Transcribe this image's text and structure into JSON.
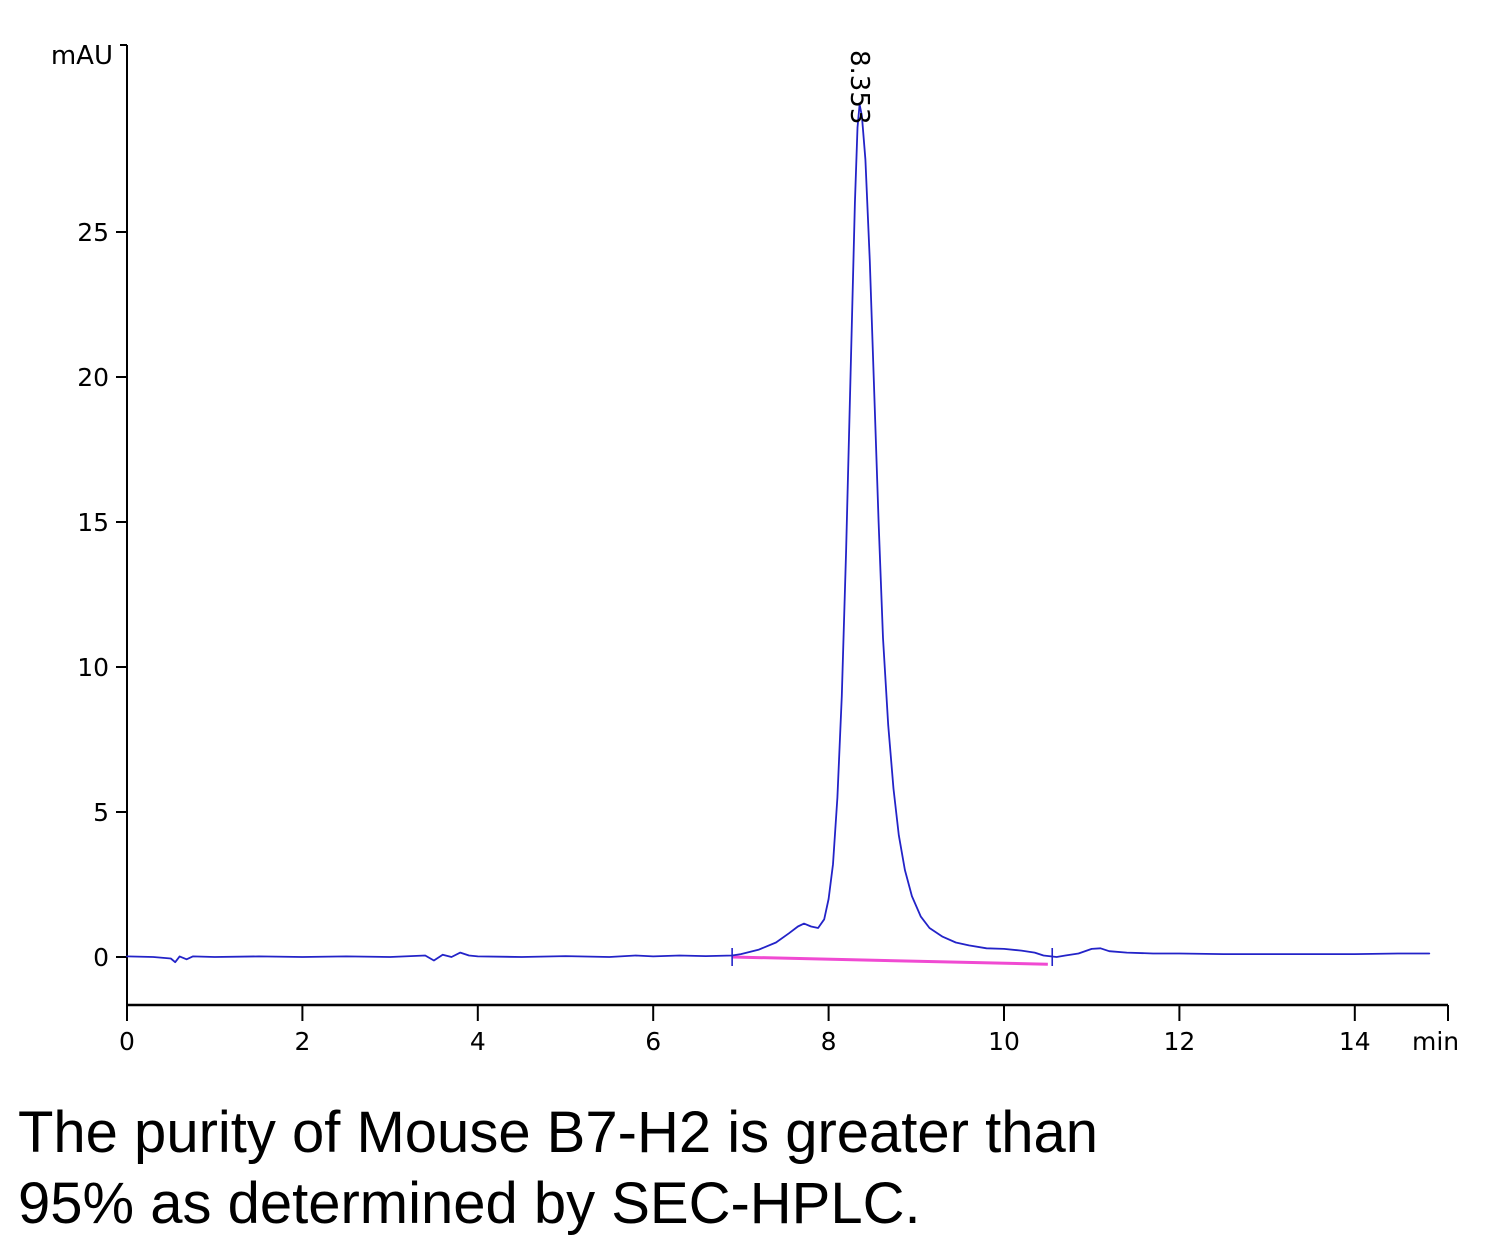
{
  "caption": {
    "line1": "The purity of Mouse B7-H2 is greater than",
    "line2": "95% as determined by SEC-HPLC."
  },
  "chart_data": {
    "type": "line",
    "title": "",
    "ylabel": "mAU",
    "xlabel": "min",
    "xlim": [
      0,
      15
    ],
    "ylim": [
      -1.7,
      31.5
    ],
    "x_ticks": [
      0,
      2,
      4,
      6,
      8,
      10,
      12,
      14
    ],
    "y_ticks": [
      0,
      5,
      10,
      15,
      20,
      25
    ],
    "grid": "off",
    "legend": "off",
    "peak": {
      "x": 8.353,
      "label": "8.353",
      "height_mAU": 29.4
    },
    "integration_marks": [
      6.9,
      10.55
    ],
    "colors": {
      "trace": "#2323c8",
      "baseline": "#f04ad2",
      "axis": "#000000",
      "peak_label": "#000000"
    },
    "series": [
      {
        "name": "UV trace",
        "color": "#2323c8",
        "points": [
          [
            0,
            0.02
          ],
          [
            0.3,
            0.0
          ],
          [
            0.5,
            -0.05
          ],
          [
            0.55,
            -0.18
          ],
          [
            0.6,
            0.02
          ],
          [
            0.68,
            -0.08
          ],
          [
            0.75,
            0.02
          ],
          [
            1.0,
            0.0
          ],
          [
            1.5,
            0.02
          ],
          [
            2.0,
            0.0
          ],
          [
            2.5,
            0.02
          ],
          [
            3.0,
            0.0
          ],
          [
            3.4,
            0.05
          ],
          [
            3.5,
            -0.12
          ],
          [
            3.6,
            0.08
          ],
          [
            3.7,
            0.0
          ],
          [
            3.8,
            0.15
          ],
          [
            3.9,
            0.05
          ],
          [
            4.0,
            0.02
          ],
          [
            4.5,
            0.0
          ],
          [
            5.0,
            0.03
          ],
          [
            5.5,
            0.0
          ],
          [
            5.8,
            0.05
          ],
          [
            6.0,
            0.02
          ],
          [
            6.3,
            0.05
          ],
          [
            6.6,
            0.03
          ],
          [
            6.9,
            0.05
          ],
          [
            7.0,
            0.1
          ],
          [
            7.2,
            0.25
          ],
          [
            7.4,
            0.5
          ],
          [
            7.55,
            0.82
          ],
          [
            7.65,
            1.05
          ],
          [
            7.72,
            1.15
          ],
          [
            7.8,
            1.05
          ],
          [
            7.88,
            1.0
          ],
          [
            7.95,
            1.3
          ],
          [
            8.0,
            2.0
          ],
          [
            8.05,
            3.2
          ],
          [
            8.1,
            5.5
          ],
          [
            8.15,
            9.0
          ],
          [
            8.2,
            14.0
          ],
          [
            8.25,
            20.0
          ],
          [
            8.3,
            26.0
          ],
          [
            8.33,
            28.6
          ],
          [
            8.353,
            29.4
          ],
          [
            8.38,
            29.0
          ],
          [
            8.42,
            27.5
          ],
          [
            8.47,
            24.0
          ],
          [
            8.52,
            19.5
          ],
          [
            8.57,
            15.0
          ],
          [
            8.62,
            11.0
          ],
          [
            8.68,
            8.0
          ],
          [
            8.74,
            5.8
          ],
          [
            8.8,
            4.2
          ],
          [
            8.87,
            3.0
          ],
          [
            8.95,
            2.1
          ],
          [
            9.05,
            1.4
          ],
          [
            9.15,
            1.0
          ],
          [
            9.3,
            0.7
          ],
          [
            9.45,
            0.5
          ],
          [
            9.6,
            0.4
          ],
          [
            9.8,
            0.3
          ],
          [
            10.0,
            0.28
          ],
          [
            10.2,
            0.22
          ],
          [
            10.35,
            0.15
          ],
          [
            10.45,
            0.05
          ],
          [
            10.6,
            0.0
          ],
          [
            10.7,
            0.05
          ],
          [
            10.85,
            0.12
          ],
          [
            11.0,
            0.28
          ],
          [
            11.1,
            0.3
          ],
          [
            11.2,
            0.2
          ],
          [
            11.4,
            0.15
          ],
          [
            11.7,
            0.12
          ],
          [
            12.0,
            0.12
          ],
          [
            12.5,
            0.1
          ],
          [
            13.0,
            0.1
          ],
          [
            13.5,
            0.1
          ],
          [
            14.0,
            0.1
          ],
          [
            14.5,
            0.12
          ],
          [
            14.85,
            0.12
          ]
        ]
      },
      {
        "name": "baseline",
        "color": "#f04ad2",
        "points": [
          [
            6.9,
            0.0
          ],
          [
            10.5,
            -0.25
          ]
        ]
      }
    ]
  }
}
